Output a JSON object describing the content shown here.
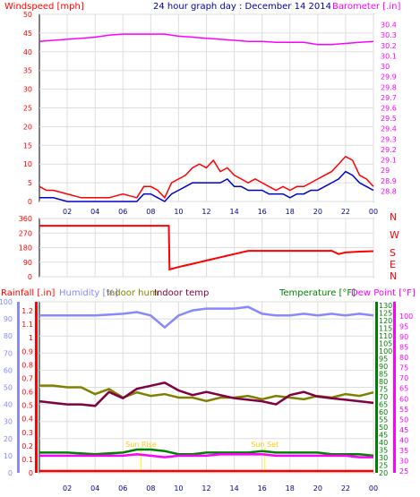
{
  "chart_data": [
    {
      "type": "line",
      "title": "24 hour graph day : December 14 2014",
      "ylabel_left": "Windspeed [mph]",
      "ylabel_right": "Barometer [.in]",
      "ylim_left": [
        0,
        50
      ],
      "ylim_right": [
        28.7,
        30.5
      ],
      "yticks_left": [
        "0",
        "5",
        "10",
        "15",
        "20",
        "25",
        "30",
        "35",
        "40",
        "45",
        "50"
      ],
      "yticks_right": [
        "28.8",
        "28.9",
        "29",
        "29.1",
        "29.2",
        "29.3",
        "29.4",
        "29.5",
        "29.6",
        "29.7",
        "29.8",
        "29.9",
        "30",
        "30.1",
        "30.2",
        "30.3",
        "30.4"
      ],
      "xticks": [
        "02",
        "04",
        "06",
        "08",
        "10",
        "12",
        "14",
        "16",
        "18",
        "20",
        "22",
        "00"
      ],
      "series": [
        {
          "name": "Barometer [.in]",
          "color": "#ff00ff",
          "axis": "right",
          "x": [
            0,
            1,
            2,
            3,
            4,
            5,
            6,
            7,
            8,
            9,
            10,
            11,
            12,
            13,
            14,
            15,
            16,
            17,
            18,
            19,
            20,
            21,
            22,
            23,
            24
          ],
          "values": [
            30.24,
            30.25,
            30.26,
            30.27,
            30.28,
            30.3,
            30.31,
            30.31,
            30.31,
            30.31,
            30.29,
            30.28,
            30.27,
            30.26,
            30.25,
            30.24,
            30.24,
            30.23,
            30.23,
            30.23,
            30.21,
            30.21,
            30.22,
            30.23,
            30.24
          ]
        },
        {
          "name": "Gust",
          "color": "#ff0000",
          "axis": "left",
          "x": [
            0,
            0.5,
            1,
            2,
            3,
            4,
            5,
            6,
            7,
            7.5,
            8,
            8.5,
            9,
            9.5,
            10,
            10.5,
            11,
            11.5,
            12,
            12.5,
            13,
            13.5,
            14,
            14.5,
            15,
            15.5,
            16,
            16.5,
            17,
            17.5,
            18,
            18.5,
            19,
            19.5,
            20,
            20.5,
            21,
            21.5,
            22,
            22.5,
            23,
            23.5,
            24
          ],
          "values": [
            4,
            3,
            3,
            2,
            1,
            1,
            1,
            2,
            1,
            4,
            4,
            3,
            1,
            5,
            6,
            7,
            9,
            10,
            9,
            11,
            8,
            9,
            7,
            6,
            5,
            6,
            5,
            4,
            3,
            4,
            3,
            4,
            4,
            5,
            6,
            7,
            8,
            10,
            12,
            11,
            7,
            6,
            4
          ]
        },
        {
          "name": "Wind speed",
          "color": "#0000cc",
          "axis": "left",
          "x": [
            0,
            0.5,
            1,
            2,
            3,
            4,
            5,
            6,
            7,
            7.5,
            8,
            8.5,
            9,
            9.5,
            10,
            10.5,
            11,
            11.5,
            12,
            12.5,
            13,
            13.5,
            14,
            14.5,
            15,
            15.5,
            16,
            16.5,
            17,
            17.5,
            18,
            18.5,
            19,
            19.5,
            20,
            20.5,
            21,
            21.5,
            22,
            22.5,
            23,
            23.5,
            24
          ],
          "values": [
            1,
            1,
            1,
            0,
            0,
            0,
            0,
            0,
            0,
            2,
            2,
            1,
            0,
            2,
            3,
            4,
            5,
            5,
            5,
            5,
            5,
            6,
            4,
            4,
            3,
            3,
            3,
            2,
            2,
            2,
            1,
            2,
            2,
            3,
            3,
            4,
            5,
            6,
            8,
            7,
            5,
            4,
            3
          ]
        }
      ]
    },
    {
      "type": "line",
      "ylabel_right": [
        "N",
        "W",
        "S",
        "E",
        "N"
      ],
      "yticks_left": [
        "0",
        "90",
        "180",
        "270",
        "360"
      ],
      "ylim_left": [
        0,
        360
      ],
      "xticks": [
        "02",
        "04",
        "06",
        "08",
        "10",
        "12",
        "14",
        "16",
        "18",
        "20",
        "22",
        "00"
      ],
      "series": [
        {
          "name": "Wind direction",
          "color": "#ff0000",
          "x": [
            0,
            9.3,
            9.35,
            10,
            10.5,
            11,
            11.5,
            12,
            12.5,
            13,
            13.5,
            14,
            15,
            16,
            17,
            18,
            19,
            20,
            21,
            21.5,
            22,
            23,
            24
          ],
          "values": [
            315,
            315,
            45,
            60,
            70,
            80,
            90,
            100,
            110,
            120,
            130,
            140,
            160,
            160,
            160,
            160,
            160,
            160,
            160,
            140,
            150,
            155,
            158
          ]
        }
      ]
    },
    {
      "type": "line",
      "labels": [
        "Rainfall [.in]",
        "Humidity [%]",
        "Indoor hum",
        "Indoor temp",
        "Temperature [°F]",
        "Dew Point [°F]"
      ],
      "yticks_rain": [
        "0",
        "0.1",
        "0.2",
        "0.3",
        "0.4",
        "0.5",
        "0.6",
        "0.7",
        "0.8",
        "0.9",
        "1",
        "1.1",
        "1.2"
      ],
      "yticks_humidity": [
        "0",
        "10",
        "20",
        "30",
        "40",
        "50",
        "60",
        "70",
        "80",
        "90",
        "100"
      ],
      "yticks_temp": [
        "20",
        "25",
        "30",
        "35",
        "40",
        "45",
        "50",
        "55",
        "60",
        "65",
        "70",
        "75",
        "80",
        "85",
        "90",
        "95",
        "100",
        "105",
        "110",
        "115",
        "120",
        "125",
        "130"
      ],
      "yticks_dew": [
        "25",
        "30",
        "35",
        "40",
        "45",
        "50",
        "55",
        "60",
        "65",
        "70",
        "75",
        "80",
        "85",
        "90",
        "95",
        "100"
      ],
      "ylim_humidity": [
        0,
        100
      ],
      "ylim_temp": [
        20,
        130
      ],
      "xticks": [
        "02",
        "04",
        "06",
        "08",
        "10",
        "12",
        "14",
        "16",
        "18",
        "20",
        "22",
        "00"
      ],
      "annotations": [
        "Sun Rise",
        "Sun Set"
      ],
      "series": [
        {
          "name": "Humidity [%]",
          "color": "#8888ff",
          "x": [
            0,
            2,
            4,
            6,
            7,
            8,
            9,
            10,
            11,
            12,
            13,
            14,
            15,
            16,
            17,
            18,
            19,
            20,
            21,
            22,
            23,
            24
          ],
          "values": [
            92,
            92,
            92,
            93,
            94,
            92,
            85,
            92,
            95,
            96,
            96,
            96,
            97,
            93,
            92,
            92,
            93,
            92,
            93,
            92,
            93,
            92
          ]
        },
        {
          "name": "Indoor hum",
          "color": "#808000",
          "x": [
            0,
            1,
            2,
            3,
            4,
            5,
            6,
            7,
            8,
            9,
            10,
            11,
            12,
            13,
            14,
            15,
            16,
            17,
            18,
            19,
            20,
            21,
            22,
            23,
            24
          ],
          "values": [
            51,
            51,
            50,
            50,
            46,
            49,
            44,
            47,
            45,
            46,
            44,
            44,
            42,
            44,
            44,
            45,
            43,
            45,
            44,
            43,
            45,
            44,
            46,
            45,
            47
          ]
        },
        {
          "name": "Indoor temp",
          "color": "#800040",
          "x": [
            0,
            1,
            2,
            3,
            4,
            5,
            6,
            7,
            8,
            9,
            10,
            11,
            12,
            13,
            14,
            15,
            16,
            17,
            18,
            19,
            20,
            21,
            22,
            23,
            24
          ],
          "values": [
            66,
            65,
            64,
            64,
            63,
            72,
            68,
            74,
            76,
            78,
            73,
            70,
            72,
            70,
            68,
            67,
            66,
            64,
            70,
            72,
            69,
            68,
            67,
            66,
            65
          ]
        },
        {
          "name": "Temperature [°F]",
          "color": "#008000",
          "x": [
            0,
            2,
            4,
            6,
            7,
            8,
            9,
            10,
            11,
            12,
            13,
            14,
            15,
            16,
            17,
            18,
            19,
            20,
            21,
            22,
            23,
            24
          ],
          "values": [
            33,
            33,
            32,
            33,
            35,
            35,
            34,
            32,
            32,
            33,
            33,
            33,
            33,
            34,
            33,
            33,
            33,
            33,
            32,
            32,
            32,
            31
          ]
        },
        {
          "name": "Dew Point [°F]",
          "color": "#ff00ff",
          "x": [
            0,
            2,
            4,
            6,
            7,
            8,
            9,
            10,
            11,
            12,
            13,
            14,
            15,
            16,
            17,
            18,
            19,
            20,
            21,
            22,
            23,
            24
          ],
          "values": [
            31,
            31,
            31,
            31,
            32,
            31,
            30,
            31,
            31,
            31,
            32,
            32,
            32,
            32,
            31,
            31,
            31,
            31,
            31,
            31,
            30,
            30
          ]
        },
        {
          "name": "Rainfall [.in]",
          "color": "#ff0000",
          "x": [
            0,
            24
          ],
          "values": [
            0,
            0
          ]
        }
      ]
    }
  ]
}
